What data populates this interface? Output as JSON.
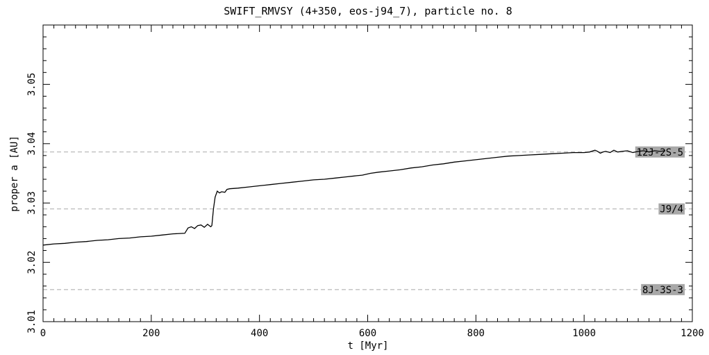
{
  "chart_data": {
    "type": "line",
    "title": "SWIFT_RMVSY (4+350, eos-j94_7), particle no. 8",
    "xlabel": "t [Myr]",
    "ylabel": "proper a [AU]",
    "xlim": [
      0,
      1200
    ],
    "ylim": [
      3.01,
      3.06
    ],
    "x_ticks": [
      0,
      200,
      400,
      600,
      800,
      1000,
      1200
    ],
    "x_tick_labels": [
      "0",
      "200",
      "400",
      "600",
      "800",
      "1000",
      "1200"
    ],
    "y_ticks": [
      3.01,
      3.02,
      3.03,
      3.04,
      3.05
    ],
    "y_tick_labels": [
      "3.01",
      "3.02",
      "3.03",
      "3.04",
      "3.05"
    ],
    "grid": false,
    "resonances": [
      {
        "label": "12J-2S-5",
        "a": 3.0386
      },
      {
        "label": "J9/4",
        "a": 3.029
      },
      {
        "label": "8J-3S-3",
        "a": 3.0154
      }
    ],
    "series": [
      {
        "x": [
          0,
          20,
          40,
          60,
          80,
          100,
          120,
          140,
          160,
          180,
          200,
          220,
          240,
          262,
          268,
          274,
          280,
          286,
          292,
          298,
          304,
          310,
          312,
          315,
          318,
          322,
          326,
          330,
          336,
          340,
          345,
          360,
          380,
          400,
          420,
          440,
          460,
          480,
          500,
          520,
          540,
          560,
          580,
          590,
          600,
          605,
          620,
          640,
          660,
          680,
          700,
          720,
          740,
          760,
          780,
          800,
          820,
          840,
          860,
          880,
          900,
          920,
          940,
          960,
          980,
          1000,
          1010,
          1020,
          1025,
          1030,
          1035,
          1040,
          1048,
          1055,
          1062,
          1070,
          1080,
          1090,
          1100,
          1110,
          1120,
          1130,
          1140,
          1150
        ],
        "y": [
          3.0229,
          3.0231,
          3.0232,
          3.0234,
          3.0235,
          3.0237,
          3.0238,
          3.024,
          3.0241,
          3.0243,
          3.0244,
          3.0246,
          3.0248,
          3.0249,
          3.0258,
          3.026,
          3.0257,
          3.0262,
          3.0263,
          3.0259,
          3.0264,
          3.026,
          3.0262,
          3.029,
          3.031,
          3.032,
          3.0317,
          3.0319,
          3.0318,
          3.0323,
          3.0324,
          3.0325,
          3.0327,
          3.0329,
          3.0331,
          3.0333,
          3.0335,
          3.0337,
          3.0339,
          3.034,
          3.0342,
          3.0344,
          3.0346,
          3.0347,
          3.0349,
          3.035,
          3.0352,
          3.0354,
          3.0356,
          3.0359,
          3.0361,
          3.0364,
          3.0366,
          3.0369,
          3.0371,
          3.0373,
          3.0375,
          3.0377,
          3.0379,
          3.038,
          3.0381,
          3.0382,
          3.0383,
          3.0384,
          3.0385,
          3.0385,
          3.0386,
          3.0389,
          3.0387,
          3.0384,
          3.0386,
          3.0387,
          3.0385,
          3.0389,
          3.0386,
          3.0387,
          3.0388,
          3.0385,
          3.0387,
          3.0388,
          3.0386,
          3.0388,
          3.0387,
          3.0388
        ]
      }
    ]
  }
}
